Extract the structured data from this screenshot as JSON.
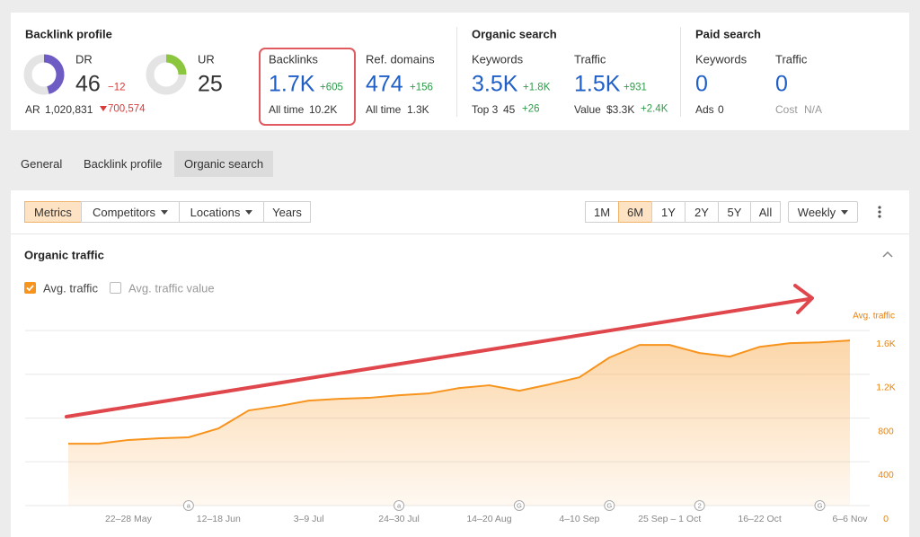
{
  "backlink_profile": {
    "title": "Backlink profile",
    "dr": {
      "label": "DR",
      "value": 46,
      "change": "−12"
    },
    "ur": {
      "label": "UR",
      "value": 25
    },
    "ar": {
      "label": "AR",
      "value": "1,020,831",
      "change": "700,574"
    }
  },
  "backlinks": {
    "label": "Backlinks",
    "value": "1.7K",
    "change": "+605",
    "sub_label": "All time",
    "sub_value": "10.2K"
  },
  "ref_domains": {
    "label": "Ref. domains",
    "value": "474",
    "change": "+156",
    "sub_label": "All time",
    "sub_value": "1.3K"
  },
  "organic_search": {
    "title": "Organic search",
    "keywords": {
      "label": "Keywords",
      "value": "3.5K",
      "change": "+1.8K",
      "sub_label": "Top 3",
      "sub_value": "45",
      "sub_change": "+26"
    },
    "traffic": {
      "label": "Traffic",
      "value": "1.5K",
      "change": "+931",
      "sub_label": "Value",
      "sub_value": "$3.3K",
      "sub_change": "+2.4K"
    }
  },
  "paid_search": {
    "title": "Paid search",
    "keywords": {
      "label": "Keywords",
      "value": "0",
      "sub_label": "Ads",
      "sub_value": "0"
    },
    "traffic": {
      "label": "Traffic",
      "value": "0",
      "sub_label": "Cost",
      "sub_value": "N/A"
    }
  },
  "tabs": [
    "General",
    "Backlink profile",
    "Organic search"
  ],
  "toolbar": {
    "views": [
      "Metrics",
      "Competitors",
      "Locations",
      "Years"
    ],
    "ranges": [
      "1M",
      "6M",
      "1Y",
      "2Y",
      "5Y",
      "All"
    ],
    "interval": "Weekly"
  },
  "chart_data": {
    "type": "area",
    "title": "Organic traffic",
    "y_label": "Avg. traffic",
    "categories": [
      null,
      null,
      "22–28 May",
      null,
      null,
      "12–18 Jun",
      null,
      null,
      "3–9 Jul",
      null,
      null,
      "24–30 Jul",
      null,
      null,
      "14–20 Aug",
      null,
      null,
      "4–10 Sep",
      null,
      null,
      "25 Sep – 1 Oct",
      null,
      null,
      "16–22 Oct",
      null,
      null,
      "6–6 Nov"
    ],
    "event_markers": [
      null,
      null,
      null,
      null,
      "a",
      null,
      null,
      null,
      null,
      null,
      null,
      "a",
      null,
      null,
      null,
      "G",
      null,
      null,
      "G",
      null,
      null,
      "2",
      null,
      null,
      null,
      "G",
      null
    ],
    "series": [
      {
        "name": "Avg. traffic",
        "color": "#f7941d",
        "checked": true,
        "values": [
          566,
          566,
          600,
          615,
          624,
          706,
          870,
          910,
          960,
          976,
          985,
          1009,
          1026,
          1075,
          1100,
          1050,
          1108,
          1173,
          1354,
          1469,
          1469,
          1395,
          1362,
          1452,
          1485,
          1493,
          1510
        ]
      }
    ],
    "unchecked_series": [
      {
        "name": "Avg. traffic value"
      }
    ],
    "ylim": [
      0,
      1700
    ],
    "yticks": [
      0,
      400,
      800,
      {
        "value": 1200,
        "label": "1.2K"
      },
      {
        "value": 1600,
        "label": "1.6K"
      }
    ],
    "grid": true
  }
}
